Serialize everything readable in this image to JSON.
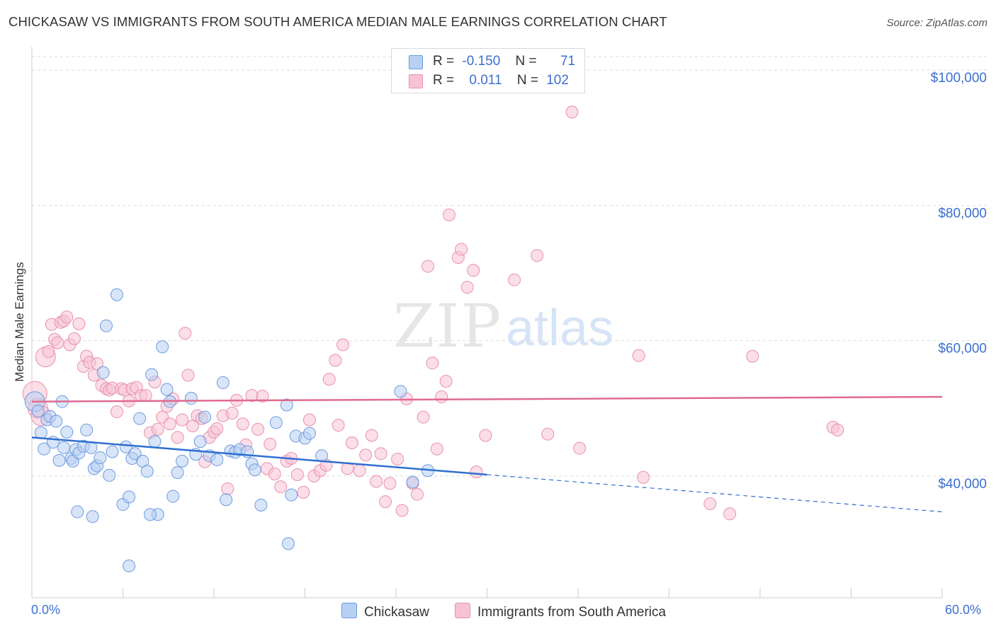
{
  "title": "CHICKASAW VS IMMIGRANTS FROM SOUTH AMERICA MEDIAN MALE EARNINGS CORRELATION CHART",
  "source": "Source: ZipAtlas.com",
  "watermark": {
    "zip": "ZIP",
    "atlas": "atlas"
  },
  "colors": {
    "blue_fill": "#b8d0f2",
    "blue_stroke": "#6d9be0",
    "blue_line": "#2f6fd1",
    "pink_fill": "#f7c3d3",
    "pink_stroke": "#e891ad",
    "pink_line": "#e06a90",
    "axis_text": "#3b6fd0",
    "grid": "#dddddd"
  },
  "legend_top": [
    {
      "r_label": "R =",
      "r_value": "-0.150",
      "n_label": "N =",
      "n_value": "71"
    },
    {
      "r_label": "R =",
      "r_value": "0.011",
      "n_label": "N =",
      "n_value": "102"
    }
  ],
  "bottom_legend": [
    "Chickasaw",
    "Immigrants from South America"
  ],
  "chart_data": {
    "type": "scatter",
    "title": "CHICKASAW VS IMMIGRANTS FROM SOUTH AMERICA MEDIAN MALE EARNINGS CORRELATION CHART",
    "xlabel": "",
    "ylabel": "Median Male Earnings",
    "xlim": [
      0,
      60
    ],
    "ylim": [
      22000,
      102000
    ],
    "x_tick_labels": [
      "0.0%",
      "60.0%"
    ],
    "y_ticks": [
      40000,
      60000,
      80000,
      100000
    ],
    "y_tick_labels": [
      "$40,000",
      "$60,000",
      "$80,000",
      "$100,000"
    ],
    "grid": true,
    "legend_placement": "top-center",
    "series": [
      {
        "name": "Chickasaw",
        "color": "#b8d0f2",
        "trend": {
          "x": [
            0,
            30
          ],
          "y": [
            45700,
            40200
          ],
          "dashed_to": [
            60,
            34700
          ]
        },
        "points": [
          [
            0.2,
            51000,
            1
          ],
          [
            0.4,
            49600,
            0
          ],
          [
            0.6,
            46400,
            0
          ],
          [
            1.0,
            48300,
            0
          ],
          [
            0.8,
            44000,
            0
          ],
          [
            1.2,
            48800,
            0
          ],
          [
            1.4,
            45000,
            0
          ],
          [
            1.6,
            48100,
            0
          ],
          [
            1.8,
            42300,
            0
          ],
          [
            2.0,
            51000,
            0
          ],
          [
            2.1,
            44200,
            0
          ],
          [
            2.3,
            46500,
            0
          ],
          [
            2.6,
            42600,
            0
          ],
          [
            2.7,
            42200,
            0
          ],
          [
            2.9,
            43900,
            0
          ],
          [
            3.1,
            43400,
            0
          ],
          [
            3.4,
            44400,
            0
          ],
          [
            3.6,
            46800,
            0
          ],
          [
            3.9,
            44200,
            0
          ],
          [
            4.1,
            41100,
            0
          ],
          [
            4.3,
            41500,
            0
          ],
          [
            4.5,
            42700,
            0
          ],
          [
            4.7,
            55300,
            0
          ],
          [
            4.9,
            62200,
            0
          ],
          [
            5.1,
            40100,
            0
          ],
          [
            5.3,
            43600,
            0
          ],
          [
            5.6,
            66800,
            0
          ],
          [
            6.0,
            35800,
            0
          ],
          [
            6.2,
            44300,
            0
          ],
          [
            6.4,
            36900,
            0
          ],
          [
            6.6,
            42600,
            0
          ],
          [
            6.8,
            43300,
            0
          ],
          [
            7.1,
            48500,
            0
          ],
          [
            7.3,
            42200,
            0
          ],
          [
            7.6,
            40700,
            0
          ],
          [
            7.9,
            55000,
            0
          ],
          [
            8.1,
            45100,
            0
          ],
          [
            8.3,
            34300,
            0
          ],
          [
            8.6,
            59100,
            0
          ],
          [
            8.9,
            52800,
            0
          ],
          [
            9.1,
            51000,
            0
          ],
          [
            9.3,
            37000,
            0
          ],
          [
            9.6,
            40500,
            0
          ],
          [
            9.9,
            42200,
            0
          ],
          [
            10.5,
            51500,
            0
          ],
          [
            10.8,
            43200,
            0
          ],
          [
            11.1,
            45100,
            0
          ],
          [
            11.4,
            48700,
            0
          ],
          [
            11.7,
            43000,
            0
          ],
          [
            12.2,
            42400,
            0
          ],
          [
            12.6,
            53800,
            0
          ],
          [
            12.8,
            36500,
            0
          ],
          [
            13.1,
            43700,
            0
          ],
          [
            13.4,
            43500,
            0
          ],
          [
            13.7,
            43900,
            0
          ],
          [
            14.2,
            43600,
            0
          ],
          [
            14.5,
            41800,
            0
          ],
          [
            14.7,
            40900,
            0
          ],
          [
            15.1,
            35700,
            0
          ],
          [
            16.8,
            50500,
            0
          ],
          [
            17.1,
            37200,
            0
          ],
          [
            17.4,
            45900,
            0
          ],
          [
            18.0,
            45600,
            0
          ],
          [
            18.3,
            46300,
            0
          ],
          [
            16.1,
            47900,
            0
          ],
          [
            19.1,
            43000,
            0
          ],
          [
            24.3,
            52500,
            0
          ],
          [
            25.1,
            39100,
            0
          ],
          [
            26.1,
            40800,
            0
          ],
          [
            6.4,
            26700,
            0
          ],
          [
            3.0,
            34700,
            0
          ],
          [
            4.0,
            34000,
            0
          ],
          [
            16.9,
            30000,
            0
          ],
          [
            7.8,
            34300,
            0
          ]
        ]
      },
      {
        "name": "Immigrants from South America",
        "color": "#f7c3d3",
        "trend": {
          "x": [
            0,
            60
          ],
          "y": [
            51000,
            51700
          ]
        },
        "points": [
          [
            0.2,
            52200,
            2
          ],
          [
            0.4,
            50000,
            1
          ],
          [
            0.6,
            48900,
            1
          ],
          [
            0.9,
            57600,
            1
          ],
          [
            1.1,
            58400,
            0
          ],
          [
            1.3,
            62400,
            0
          ],
          [
            1.5,
            60200,
            0
          ],
          [
            1.7,
            59700,
            0
          ],
          [
            1.9,
            62700,
            0
          ],
          [
            2.1,
            62900,
            0
          ],
          [
            2.3,
            63500,
            0
          ],
          [
            2.5,
            59400,
            0
          ],
          [
            2.8,
            60300,
            0
          ],
          [
            3.1,
            62500,
            0
          ],
          [
            3.4,
            56200,
            0
          ],
          [
            3.6,
            57700,
            0
          ],
          [
            3.8,
            56800,
            0
          ],
          [
            4.1,
            54900,
            0
          ],
          [
            4.3,
            56600,
            0
          ],
          [
            4.6,
            53400,
            0
          ],
          [
            4.9,
            52900,
            0
          ],
          [
            5.1,
            52700,
            0
          ],
          [
            5.3,
            53000,
            0
          ],
          [
            5.6,
            49500,
            0
          ],
          [
            5.9,
            52900,
            0
          ],
          [
            6.1,
            52700,
            0
          ],
          [
            6.4,
            51100,
            0
          ],
          [
            6.6,
            52900,
            0
          ],
          [
            6.9,
            53100,
            0
          ],
          [
            7.2,
            51900,
            0
          ],
          [
            7.5,
            51900,
            0
          ],
          [
            7.8,
            46400,
            0
          ],
          [
            8.1,
            53900,
            0
          ],
          [
            8.3,
            46900,
            0
          ],
          [
            8.6,
            48700,
            0
          ],
          [
            8.9,
            50300,
            0
          ],
          [
            9.1,
            47700,
            0
          ],
          [
            9.3,
            51400,
            0
          ],
          [
            9.6,
            45700,
            0
          ],
          [
            9.9,
            48300,
            0
          ],
          [
            10.1,
            61100,
            0
          ],
          [
            10.3,
            54900,
            0
          ],
          [
            10.6,
            47400,
            0
          ],
          [
            10.9,
            48900,
            0
          ],
          [
            11.2,
            48500,
            0
          ],
          [
            11.4,
            42100,
            0
          ],
          [
            11.7,
            45700,
            0
          ],
          [
            12.0,
            46500,
            0
          ],
          [
            12.2,
            47000,
            0
          ],
          [
            12.6,
            48900,
            0
          ],
          [
            12.9,
            38100,
            0
          ],
          [
            13.2,
            49300,
            0
          ],
          [
            13.5,
            51200,
            0
          ],
          [
            13.9,
            47700,
            0
          ],
          [
            14.1,
            44600,
            0
          ],
          [
            14.5,
            51900,
            0
          ],
          [
            14.9,
            46900,
            0
          ],
          [
            15.2,
            51800,
            0
          ],
          [
            15.5,
            41100,
            0
          ],
          [
            15.7,
            44700,
            0
          ],
          [
            16.0,
            40300,
            0
          ],
          [
            16.4,
            38400,
            0
          ],
          [
            16.8,
            42200,
            0
          ],
          [
            17.1,
            42600,
            0
          ],
          [
            17.5,
            40200,
            0
          ],
          [
            17.9,
            37600,
            0
          ],
          [
            18.3,
            48300,
            0
          ],
          [
            18.6,
            40000,
            0
          ],
          [
            19.0,
            40800,
            0
          ],
          [
            19.4,
            41600,
            0
          ],
          [
            19.6,
            54300,
            0
          ],
          [
            20.0,
            57100,
            0
          ],
          [
            20.2,
            47500,
            0
          ],
          [
            20.5,
            59400,
            0
          ],
          [
            20.8,
            41100,
            0
          ],
          [
            21.1,
            44900,
            0
          ],
          [
            21.6,
            40800,
            0
          ],
          [
            22.0,
            43100,
            0
          ],
          [
            22.4,
            46000,
            0
          ],
          [
            22.7,
            39200,
            0
          ],
          [
            23.0,
            43300,
            0
          ],
          [
            23.3,
            36200,
            0
          ],
          [
            23.6,
            38900,
            0
          ],
          [
            24.1,
            42500,
            0
          ],
          [
            24.4,
            34900,
            0
          ],
          [
            24.7,
            51400,
            0
          ],
          [
            25.1,
            38900,
            0
          ],
          [
            25.4,
            37300,
            0
          ],
          [
            25.8,
            48700,
            0
          ],
          [
            26.1,
            71000,
            0
          ],
          [
            26.4,
            56700,
            0
          ],
          [
            26.7,
            44000,
            0
          ],
          [
            27.0,
            51700,
            0
          ],
          [
            27.3,
            54000,
            0
          ],
          [
            27.5,
            78600,
            0
          ],
          [
            28.1,
            72300,
            0
          ],
          [
            28.3,
            73500,
            0
          ],
          [
            28.7,
            67900,
            0
          ],
          [
            29.1,
            70400,
            0
          ],
          [
            29.3,
            40600,
            0
          ],
          [
            29.9,
            46000,
            0
          ],
          [
            31.8,
            69000,
            0
          ],
          [
            33.3,
            72600,
            0
          ],
          [
            34.0,
            46200,
            0
          ],
          [
            35.6,
            93800,
            0
          ],
          [
            36.1,
            44100,
            0
          ],
          [
            40.0,
            57800,
            0
          ],
          [
            40.3,
            39800,
            0
          ],
          [
            46.0,
            34400,
            0
          ],
          [
            47.5,
            57700,
            0
          ],
          [
            52.8,
            47200,
            0
          ],
          [
            53.1,
            46800,
            0
          ],
          [
            44.7,
            35900,
            0
          ]
        ]
      }
    ]
  }
}
